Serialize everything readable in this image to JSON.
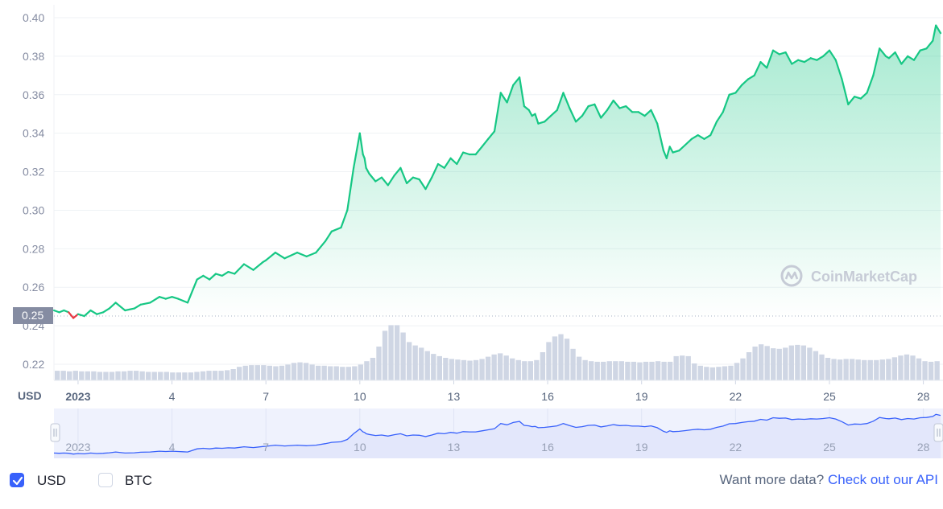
{
  "chart_data": {
    "type": "area",
    "currency_label": "USD",
    "watermark": "CoinMarketCap",
    "current_price": "0.25",
    "y_ticks": [
      "0.40",
      "0.38",
      "0.36",
      "0.34",
      "0.32",
      "0.30",
      "0.28",
      "0.26",
      "0.24",
      "0.22"
    ],
    "ylim": [
      0.215,
      0.402
    ],
    "x_ticks": [
      "2023",
      "4",
      "7",
      "10",
      "13",
      "16",
      "19",
      "22",
      "25",
      "28"
    ],
    "xlim": [
      -0.77,
      27.55
    ],
    "series": [
      {
        "x": [
          -0.77,
          -0.6,
          -0.45,
          -0.3,
          -0.15,
          0.0,
          0.2,
          0.4,
          0.6,
          0.8,
          1.0,
          1.2,
          1.5,
          1.8,
          2.0,
          2.3,
          2.6,
          2.8,
          3.0,
          3.2,
          3.35,
          3.5,
          3.8,
          4.0,
          4.2,
          4.4,
          4.6,
          4.8,
          5.0,
          5.3,
          5.6,
          5.9,
          6.0,
          6.3,
          6.6,
          7.0,
          7.3,
          7.6,
          7.9,
          8.1,
          8.4,
          8.6,
          8.8,
          9.0,
          9.1,
          9.15,
          9.2,
          9.3,
          9.5,
          9.7,
          9.9,
          10.1,
          10.3,
          10.5,
          10.7,
          10.9,
          11.1,
          11.3,
          11.5,
          11.7,
          11.9,
          12.1,
          12.3,
          12.5,
          12.7,
          12.9,
          13.1,
          13.3,
          13.5,
          13.7,
          13.9,
          14.1,
          14.25,
          14.4,
          14.5,
          14.6,
          14.7,
          14.9,
          15.1,
          15.3,
          15.5,
          15.7,
          15.9,
          16.1,
          16.3,
          16.5,
          16.7,
          16.9,
          17.1,
          17.3,
          17.5,
          17.7,
          17.9,
          18.1,
          18.3,
          18.5,
          18.7,
          18.8,
          18.9,
          19.0,
          19.2,
          19.4,
          19.6,
          19.8,
          20.0,
          20.2,
          20.4,
          20.6,
          20.8,
          21.0,
          21.2,
          21.4,
          21.6,
          21.8,
          22.0,
          22.2,
          22.4,
          22.6,
          22.8,
          23.0,
          23.2,
          23.4,
          23.6,
          23.8,
          24.0,
          24.2,
          24.4,
          24.6,
          24.8,
          25.0,
          25.2,
          25.4,
          25.6,
          25.8,
          25.9,
          26.1,
          26.3,
          26.5,
          26.7,
          26.9,
          27.1,
          27.3,
          27.4,
          27.55
        ],
        "y": [
          0.248,
          0.247,
          0.248,
          0.247,
          0.244,
          0.246,
          0.245,
          0.248,
          0.246,
          0.247,
          0.249,
          0.252,
          0.248,
          0.249,
          0.251,
          0.252,
          0.255,
          0.254,
          0.255,
          0.254,
          0.253,
          0.252,
          0.264,
          0.266,
          0.264,
          0.267,
          0.266,
          0.268,
          0.267,
          0.272,
          0.269,
          0.273,
          0.274,
          0.278,
          0.275,
          0.278,
          0.276,
          0.278,
          0.284,
          0.289,
          0.291,
          0.3,
          0.322,
          0.34,
          0.329,
          0.327,
          0.322,
          0.319,
          0.315,
          0.317,
          0.313,
          0.318,
          0.322,
          0.314,
          0.317,
          0.316,
          0.311,
          0.317,
          0.324,
          0.322,
          0.327,
          0.324,
          0.33,
          0.329,
          0.329,
          0.333,
          0.337,
          0.341,
          0.361,
          0.356,
          0.365,
          0.369,
          0.354,
          0.352,
          0.349,
          0.35,
          0.345,
          0.346,
          0.349,
          0.352,
          0.361,
          0.353,
          0.346,
          0.349,
          0.354,
          0.355,
          0.348,
          0.352,
          0.357,
          0.353,
          0.354,
          0.351,
          0.351,
          0.349,
          0.352,
          0.345,
          0.331,
          0.327,
          0.333,
          0.33,
          0.331,
          0.334,
          0.337,
          0.339,
          0.337,
          0.339,
          0.346,
          0.351,
          0.36,
          0.361,
          0.365,
          0.368,
          0.37,
          0.377,
          0.374,
          0.383,
          0.381,
          0.382,
          0.376,
          0.378,
          0.377,
          0.379,
          0.378,
          0.38,
          0.383,
          0.378,
          0.368,
          0.355,
          0.359,
          0.358,
          0.361,
          0.37,
          0.384,
          0.38,
          0.379,
          0.382,
          0.376,
          0.38,
          0.378,
          0.383,
          0.384,
          0.388,
          0.396,
          0.392
        ]
      }
    ],
    "volume": [
      0.17,
      0.17,
      0.16,
      0.17,
      0.16,
      0.16,
      0.16,
      0.15,
      0.15,
      0.15,
      0.16,
      0.16,
      0.17,
      0.17,
      0.16,
      0.15,
      0.15,
      0.15,
      0.15,
      0.14,
      0.14,
      0.14,
      0.14,
      0.15,
      0.16,
      0.17,
      0.17,
      0.17,
      0.18,
      0.2,
      0.24,
      0.26,
      0.27,
      0.27,
      0.27,
      0.26,
      0.25,
      0.26,
      0.28,
      0.31,
      0.32,
      0.31,
      0.28,
      0.26,
      0.26,
      0.25,
      0.25,
      0.24,
      0.24,
      0.25,
      0.28,
      0.34,
      0.4,
      0.6,
      0.88,
      0.98,
      0.98,
      0.85,
      0.68,
      0.62,
      0.58,
      0.52,
      0.47,
      0.43,
      0.4,
      0.38,
      0.37,
      0.36,
      0.35,
      0.36,
      0.38,
      0.42,
      0.46,
      0.48,
      0.44,
      0.39,
      0.36,
      0.34,
      0.34,
      0.36,
      0.5,
      0.68,
      0.78,
      0.82,
      0.74,
      0.56,
      0.42,
      0.36,
      0.34,
      0.33,
      0.33,
      0.34,
      0.34,
      0.34,
      0.33,
      0.33,
      0.32,
      0.33,
      0.33,
      0.34,
      0.33,
      0.33,
      0.43,
      0.44,
      0.43,
      0.3,
      0.26,
      0.24,
      0.23,
      0.24,
      0.25,
      0.26,
      0.31,
      0.39,
      0.5,
      0.6,
      0.64,
      0.61,
      0.57,
      0.56,
      0.58,
      0.62,
      0.63,
      0.62,
      0.58,
      0.52,
      0.46,
      0.4,
      0.38,
      0.37,
      0.38,
      0.38,
      0.37,
      0.36,
      0.36,
      0.36,
      0.37,
      0.38,
      0.41,
      0.44,
      0.46,
      0.44,
      0.39,
      0.34,
      0.33,
      0.34
    ]
  },
  "footer": {
    "usd_label": "USD",
    "btc_label": "BTC",
    "more_data_text": "Want more data?",
    "api_link_text": "Check out our API"
  },
  "colors": {
    "up_line": "#16c784",
    "down_line": "#ea3943",
    "volume_bar": "#cfd6e4",
    "navigator_line": "#3861fb",
    "navigator_fill": "#e3e7fb",
    "checkbox_checked": "#3861fb",
    "link": "#3861fb"
  }
}
